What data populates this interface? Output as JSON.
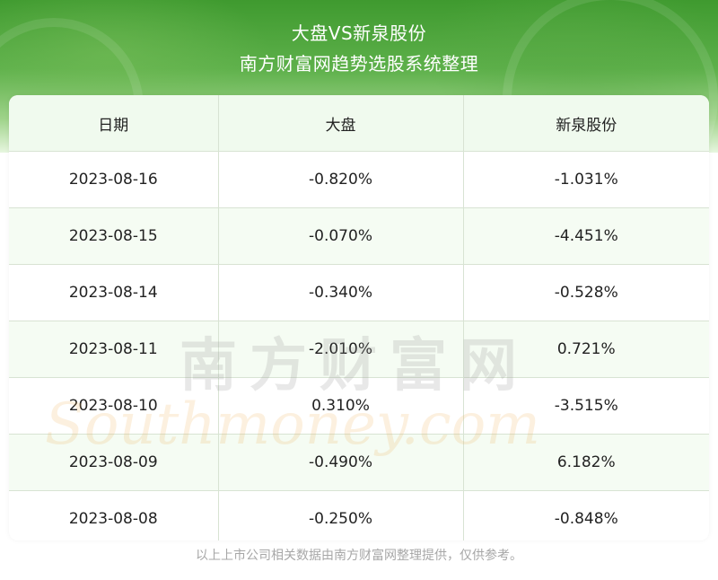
{
  "header": {
    "title_line1": "大盘VS新泉股份",
    "title_line2": "南方财富网趋势选股系统整理"
  },
  "table": {
    "columns": [
      "日期",
      "大盘",
      "新泉股份"
    ],
    "rows": [
      [
        "2023-08-16",
        "-0.820%",
        "-1.031%"
      ],
      [
        "2023-08-15",
        "-0.070%",
        "-4.451%"
      ],
      [
        "2023-08-14",
        "-0.340%",
        "-0.528%"
      ],
      [
        "2023-08-11",
        "-2.010%",
        "0.721%"
      ],
      [
        "2023-08-10",
        "0.310%",
        "-3.515%"
      ],
      [
        "2023-08-09",
        "-0.490%",
        "6.182%"
      ],
      [
        "2023-08-08",
        "-0.250%",
        "-0.848%"
      ]
    ]
  },
  "watermark": {
    "chinese": "南方财富网",
    "english": "Southmoney.com"
  },
  "footer": {
    "note": "以上上市公司相关数据由南方财富网整理提供，仅供参考。"
  },
  "colors": {
    "banner_green": "#4ea63c",
    "header_row_bg": "#f0faee",
    "stripe_bg": "#f5fcf3",
    "footer_text": "#a7a7a7"
  }
}
